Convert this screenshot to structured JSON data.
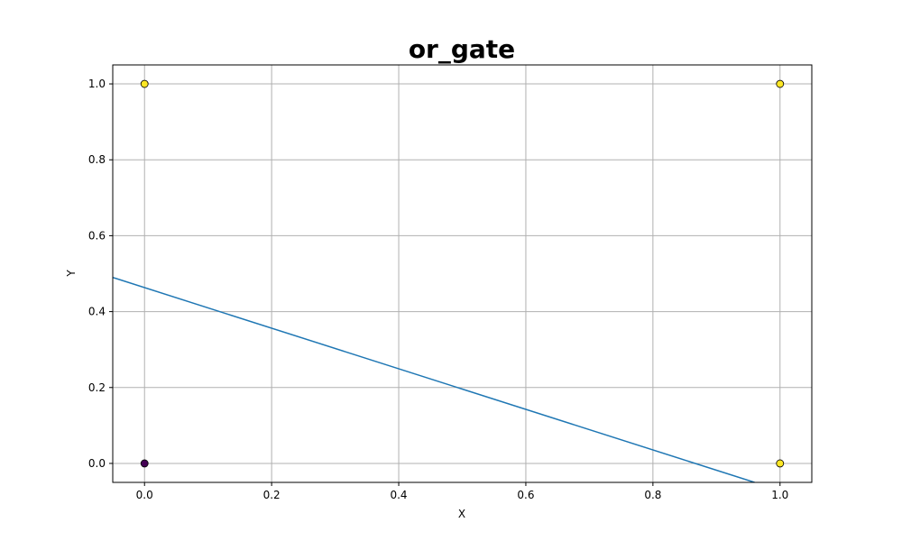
{
  "chart_data": {
    "type": "scatter",
    "title": "or_gate",
    "xlabel": "X",
    "ylabel": "Y",
    "xlim": [
      -0.05,
      1.05
    ],
    "ylim": [
      -0.05,
      1.05
    ],
    "xticks": [
      0.0,
      0.2,
      0.4,
      0.6,
      0.8,
      1.0
    ],
    "yticks": [
      0.0,
      0.2,
      0.4,
      0.6,
      0.8,
      1.0
    ],
    "xtick_labels": [
      "0.0",
      "0.2",
      "0.4",
      "0.6",
      "0.8",
      "1.0"
    ],
    "ytick_labels": [
      "0.0",
      "0.2",
      "0.4",
      "0.6",
      "0.8",
      "1.0"
    ],
    "grid": true,
    "points": [
      {
        "x": 0,
        "y": 0,
        "class": 0
      },
      {
        "x": 0,
        "y": 1,
        "class": 1
      },
      {
        "x": 1,
        "y": 0,
        "class": 1
      },
      {
        "x": 1,
        "y": 1,
        "class": 1
      }
    ],
    "class_colors": {
      "0": "#440154",
      "1": "#fde725"
    },
    "decision_boundary": {
      "x": [
        -0.05,
        0.96
      ],
      "y": [
        0.49,
        -0.05
      ],
      "color": "#1f77b4"
    }
  }
}
